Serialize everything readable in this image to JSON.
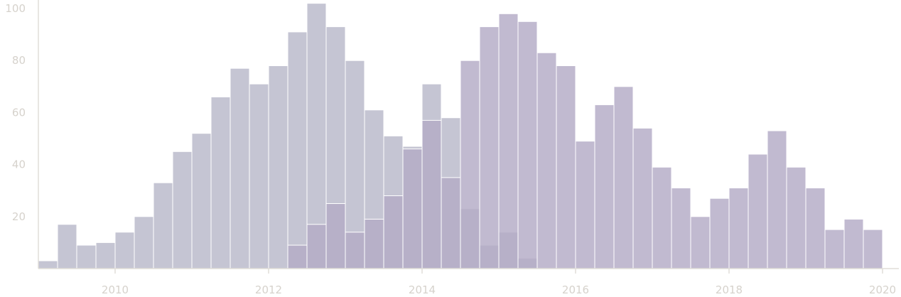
{
  "chart_data": {
    "type": "bar",
    "title": "",
    "xlabel": "",
    "ylabel": "",
    "xlim": [
      2009.0,
      2020.05
    ],
    "ylim": [
      0,
      103
    ],
    "bin_width": 0.25,
    "x_ticks": [
      2010,
      2012,
      2014,
      2016,
      2018,
      2020
    ],
    "y_ticks": [
      20,
      40,
      60,
      80,
      100
    ],
    "grid": false,
    "legend": "none",
    "series": [
      {
        "color": "#c5c5d3",
        "x": [
          2009.0,
          2009.25,
          2009.5,
          2009.75,
          2010.0,
          2010.25,
          2010.5,
          2010.75,
          2011.0,
          2011.25,
          2011.5,
          2011.75,
          2012.0,
          2012.25,
          2012.5,
          2012.75,
          2013.0,
          2013.25,
          2013.5,
          2013.75,
          2014.0,
          2014.25,
          2014.5,
          2014.75,
          2015.0,
          2015.25
        ],
        "values": [
          3,
          17,
          9,
          10,
          14,
          20,
          33,
          45,
          52,
          66,
          77,
          71,
          78,
          91,
          102,
          93,
          80,
          61,
          51,
          47,
          71,
          58,
          23,
          9,
          14,
          4
        ]
      },
      {
        "color": "#b3abc6",
        "x": [
          2012.25,
          2012.5,
          2012.75,
          2013.0,
          2013.25,
          2013.5,
          2013.75,
          2014.0,
          2014.25,
          2014.5,
          2014.75,
          2015.0,
          2015.25,
          2015.5,
          2015.75,
          2016.0,
          2016.25,
          2016.5,
          2016.75,
          2017.0,
          2017.25,
          2017.5,
          2017.75,
          2018.0,
          2018.25,
          2018.5,
          2018.75,
          2019.0,
          2019.25,
          2019.5,
          2019.75
        ],
        "values": [
          9,
          17,
          25,
          14,
          19,
          28,
          46,
          57,
          35,
          80,
          93,
          98,
          95,
          83,
          78,
          49,
          63,
          70,
          54,
          39,
          31,
          20,
          27,
          31,
          44,
          53,
          39,
          31,
          15,
          19,
          15
        ]
      }
    ]
  }
}
